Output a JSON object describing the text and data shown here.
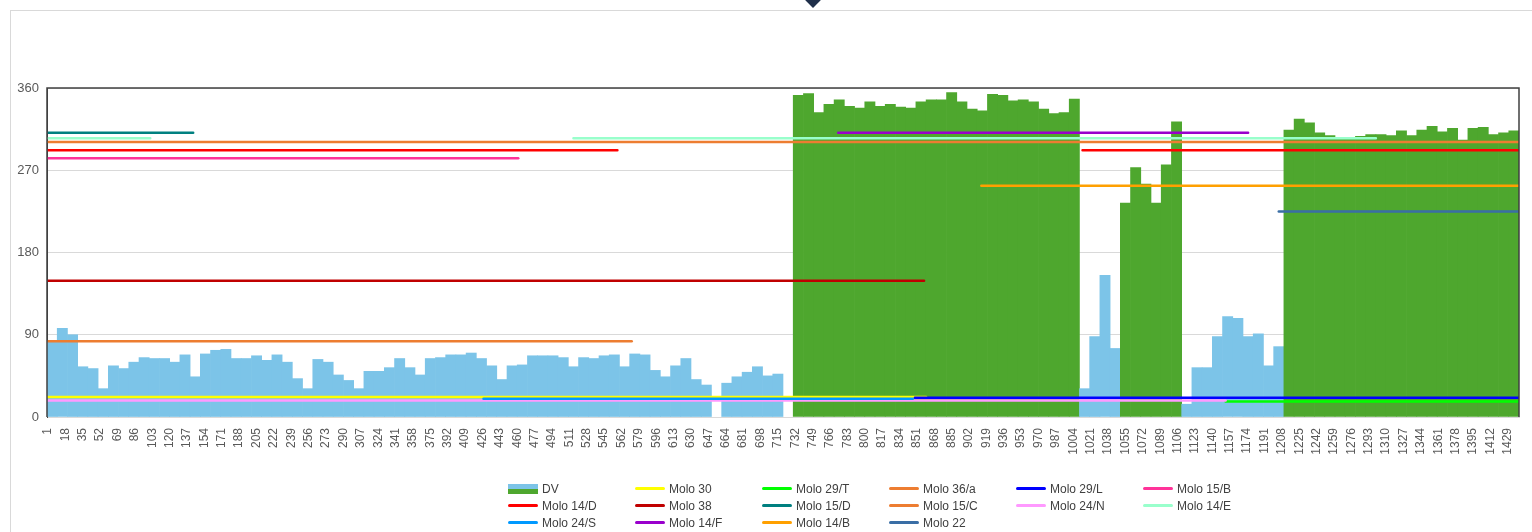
{
  "chart_data": {
    "type": "line",
    "xlim": [
      0,
      1440
    ],
    "xticks": [
      1,
      18,
      35,
      52,
      69,
      86,
      103,
      120,
      137,
      154,
      171,
      188,
      205,
      222,
      239,
      256,
      273,
      290,
      307,
      324,
      341,
      358,
      375,
      392,
      409,
      426,
      443,
      460,
      477,
      494,
      511,
      528,
      545,
      562,
      579,
      596,
      613,
      630,
      647,
      664,
      681,
      698,
      715,
      732,
      749,
      766,
      783,
      800,
      817,
      834,
      851,
      868,
      885,
      902,
      919,
      936,
      953,
      970,
      987,
      1004,
      1021,
      1038,
      1055,
      1072,
      1089,
      1106,
      1123,
      1140,
      1157,
      1174,
      1191,
      1208,
      1225,
      1242,
      1259,
      1276,
      1293,
      1310,
      1327,
      1344,
      1361,
      1378,
      1395,
      1412,
      1429
    ],
    "ylim": [
      0,
      360
    ],
    "yticks": [
      0,
      90,
      180,
      270,
      360
    ],
    "grid": "y",
    "legend": "bottom",
    "marker": "none",
    "series": [
      {
        "name": "DV",
        "type": "bar",
        "colors": [
          "#7cc4e8",
          "#7cc4e8",
          "#7cc4e8",
          "#7cc4e8",
          "#7cc4e8",
          "#7cc4e8",
          "#7cc4e8",
          "#7cc4e8",
          "#7cc4e8",
          "#7cc4e8",
          "#7cc4e8",
          "#7cc4e8",
          "#7cc4e8",
          "#7cc4e8",
          "#7cc4e8",
          "#7cc4e8",
          "#7cc4e8",
          "#7cc4e8",
          "#7cc4e8",
          "#7cc4e8",
          "#7cc4e8",
          "#7cc4e8",
          "#7cc4e8",
          "#7cc4e8",
          "#7cc4e8",
          "#7cc4e8",
          "#7cc4e8",
          "#7cc4e8",
          "#7cc4e8",
          "#7cc4e8",
          "#7cc4e8",
          "#7cc4e8",
          "#7cc4e8",
          "#7cc4e8",
          "#7cc4e8",
          "#7cc4e8",
          "#7cc4e8",
          "#7cc4e8",
          "#7cc4e8",
          "#7cc4e8",
          "#7cc4e8",
          "#7cc4e8",
          "#7cc4e8",
          "#7cc4e8",
          "#7cc4e8",
          "#7cc4e8",
          "#7cc4e8",
          "#7cc4e8",
          "#7cc4e8",
          "#7cc4e8",
          "#7cc4e8",
          "#7cc4e8",
          "#7cc4e8",
          "#7cc4e8",
          "#7cc4e8",
          "#7cc4e8",
          "#7cc4e8",
          "#7cc4e8",
          "#7cc4e8",
          "#7cc4e8",
          "#7cc4e8",
          "#7cc4e8",
          "#7cc4e8",
          "#7cc4e8",
          "#7cc4e8",
          "#7cc4e8",
          "#7cc4e8",
          "#7cc4e8",
          "#7cc4e8",
          "#7cc4e8",
          "#7cc4e8",
          "#7cc4e8",
          "#7cc4e8",
          "#4ea72e",
          "#4ea72e",
          "#4ea72e",
          "#4ea72e",
          "#4ea72e",
          "#4ea72e",
          "#4ea72e",
          "#4ea72e",
          "#4ea72e",
          "#4ea72e",
          "#4ea72e",
          "#4ea72e",
          "#4ea72e",
          "#4ea72e",
          "#4ea72e",
          "#4ea72e",
          "#4ea72e",
          "#4ea72e",
          "#4ea72e",
          "#4ea72e",
          "#4ea72e",
          "#4ea72e",
          "#4ea72e",
          "#4ea72e",
          "#4ea72e",
          "#4ea72e",
          "#4ea72e",
          "#4ea72e",
          "#7cc4e8",
          "#7cc4e8",
          "#7cc4e8",
          "#7cc4e8",
          "#4ea72e",
          "#4ea72e",
          "#4ea72e",
          "#4ea72e",
          "#4ea72e",
          "#4ea72e",
          "#7cc4e8",
          "#7cc4e8",
          "#7cc4e8",
          "#7cc4e8",
          "#7cc4e8",
          "#7cc4e8",
          "#7cc4e8",
          "#7cc4e8",
          "#7cc4e8",
          "#7cc4e8",
          "#4ea72e",
          "#4ea72e",
          "#4ea72e",
          "#4ea72e",
          "#4ea72e",
          "#4ea72e",
          "#4ea72e",
          "#4ea72e",
          "#4ea72e",
          "#4ea72e",
          "#4ea72e",
          "#4ea72e",
          "#4ea72e",
          "#4ea72e",
          "#4ea72e",
          "#4ea72e",
          "#4ea72e",
          "#4ea72e",
          "#4ea72e",
          "#4ea72e",
          "#4ea72e",
          "#4ea72e",
          "#4ea72e"
        ],
        "x": [
          5,
          15,
          25,
          35,
          45,
          55,
          65,
          75,
          85,
          95,
          105,
          115,
          125,
          135,
          145,
          155,
          165,
          175,
          185,
          195,
          205,
          215,
          225,
          235,
          245,
          255,
          265,
          275,
          285,
          295,
          305,
          315,
          325,
          335,
          345,
          355,
          365,
          375,
          385,
          395,
          405,
          415,
          425,
          435,
          445,
          455,
          465,
          475,
          485,
          495,
          505,
          515,
          525,
          535,
          545,
          555,
          565,
          575,
          585,
          595,
          605,
          615,
          625,
          635,
          645,
          655,
          665,
          675,
          685,
          695,
          705,
          715,
          725,
          735,
          745,
          755,
          765,
          775,
          785,
          795,
          805,
          815,
          825,
          835,
          845,
          855,
          865,
          875,
          885,
          895,
          905,
          915,
          925,
          935,
          945,
          955,
          965,
          975,
          985,
          995,
          1005,
          1015,
          1025,
          1035,
          1045,
          1055,
          1065,
          1075,
          1085,
          1095,
          1105,
          1115,
          1125,
          1135,
          1145,
          1155,
          1165,
          1175,
          1185,
          1195,
          1205,
          1215,
          1225,
          1235,
          1245,
          1255,
          1265,
          1275,
          1285,
          1295,
          1305,
          1315,
          1325,
          1335,
          1345,
          1355,
          1365,
          1375,
          1385,
          1395,
          1405,
          1415,
          1425,
          1435
        ],
        "values": [
          82,
          97,
          90,
          55,
          53,
          31,
          56,
          53,
          60,
          65,
          64,
          64,
          60,
          68,
          44,
          69,
          73,
          74,
          64,
          64,
          67,
          62,
          68,
          60,
          42,
          31,
          63,
          60,
          46,
          40,
          31,
          50,
          50,
          54,
          64,
          54,
          46,
          64,
          65,
          68,
          68,
          70,
          64,
          56,
          41,
          56,
          57,
          67,
          67,
          67,
          65,
          55,
          65,
          64,
          67,
          68,
          55,
          69,
          68,
          51,
          44,
          56,
          64,
          41,
          35,
          null,
          37,
          44,
          49,
          55,
          45,
          47,
          null,
          352,
          354,
          333,
          342,
          347,
          340,
          338,
          345,
          340,
          342,
          339,
          338,
          345,
          347,
          347,
          355,
          345,
          337,
          335,
          353,
          352,
          346,
          347,
          345,
          337,
          332,
          333,
          348,
          31,
          88,
          155,
          75,
          234,
          273,
          255,
          234,
          276,
          323,
          14,
          54,
          54,
          88,
          110,
          108,
          88,
          91,
          56,
          77,
          314,
          326,
          322,
          311,
          308,
          306,
          306,
          307,
          309,
          309,
          308,
          313,
          308,
          314,
          318,
          312,
          316,
          303,
          316,
          317,
          309,
          311,
          313
        ]
      },
      {
        "name": "Molo 30",
        "color": "#ffff00",
        "x": [
          1,
          860
        ],
        "values": [
          22,
          22
        ]
      },
      {
        "name": "Molo 29/T",
        "color": "#00ff00",
        "x": [
          1153,
          1440
        ],
        "values": [
          17,
          17
        ]
      },
      {
        "name": "Molo 36/a",
        "color": "#ed7d31",
        "x": [
          1,
          572
        ],
        "values": [
          83,
          83
        ]
      },
      {
        "name": "Molo 29/L",
        "color": "#0000ff",
        "x": [
          849,
          1440
        ],
        "values": [
          21,
          21
        ]
      },
      {
        "name": "Molo 15/B",
        "color": "#ff3399",
        "x": [
          1,
          461
        ],
        "values": [
          283,
          283
        ]
      },
      {
        "name": "Molo 14/D",
        "color": "#ff0000",
        "x": [
          1,
          558,
          800,
          1013,
          1440
        ],
        "values": [
          292,
          292,
          null,
          292,
          292
        ]
      },
      {
        "name": "Molo 38",
        "color": "#c00000",
        "x": [
          1,
          858
        ],
        "values": [
          149,
          149
        ]
      },
      {
        "name": "Molo 15/D",
        "color": "#008080",
        "x": [
          1,
          143
        ],
        "values": [
          311,
          311
        ]
      },
      {
        "name": "Molo 15/C",
        "color": "#ed7d31",
        "x": [
          1,
          1440
        ],
        "values": [
          301,
          301
        ]
      },
      {
        "name": "Molo 24/N",
        "color": "#ff99ff",
        "x": [
          1,
          1153
        ],
        "values": [
          18,
          18
        ]
      },
      {
        "name": "Molo 14/E",
        "color": "#99ffcc",
        "x": [
          1,
          101,
          300,
          515,
          1300
        ],
        "values": [
          305,
          305,
          null,
          305,
          305
        ]
      },
      {
        "name": "Molo 24/S",
        "color": "#0099ff",
        "x": [
          427,
          847
        ],
        "values": [
          20,
          20
        ]
      },
      {
        "name": "Molo 14/F",
        "color": "#9900cc",
        "x": [
          774,
          1175
        ],
        "values": [
          311,
          311
        ]
      },
      {
        "name": "Molo 14/B",
        "color": "#ffa000",
        "x": [
          914,
          1440
        ],
        "values": [
          253,
          253
        ]
      },
      {
        "name": "Molo 22",
        "color": "#3a6ea5",
        "x": [
          1205,
          1440
        ],
        "values": [
          225,
          225
        ]
      }
    ]
  }
}
